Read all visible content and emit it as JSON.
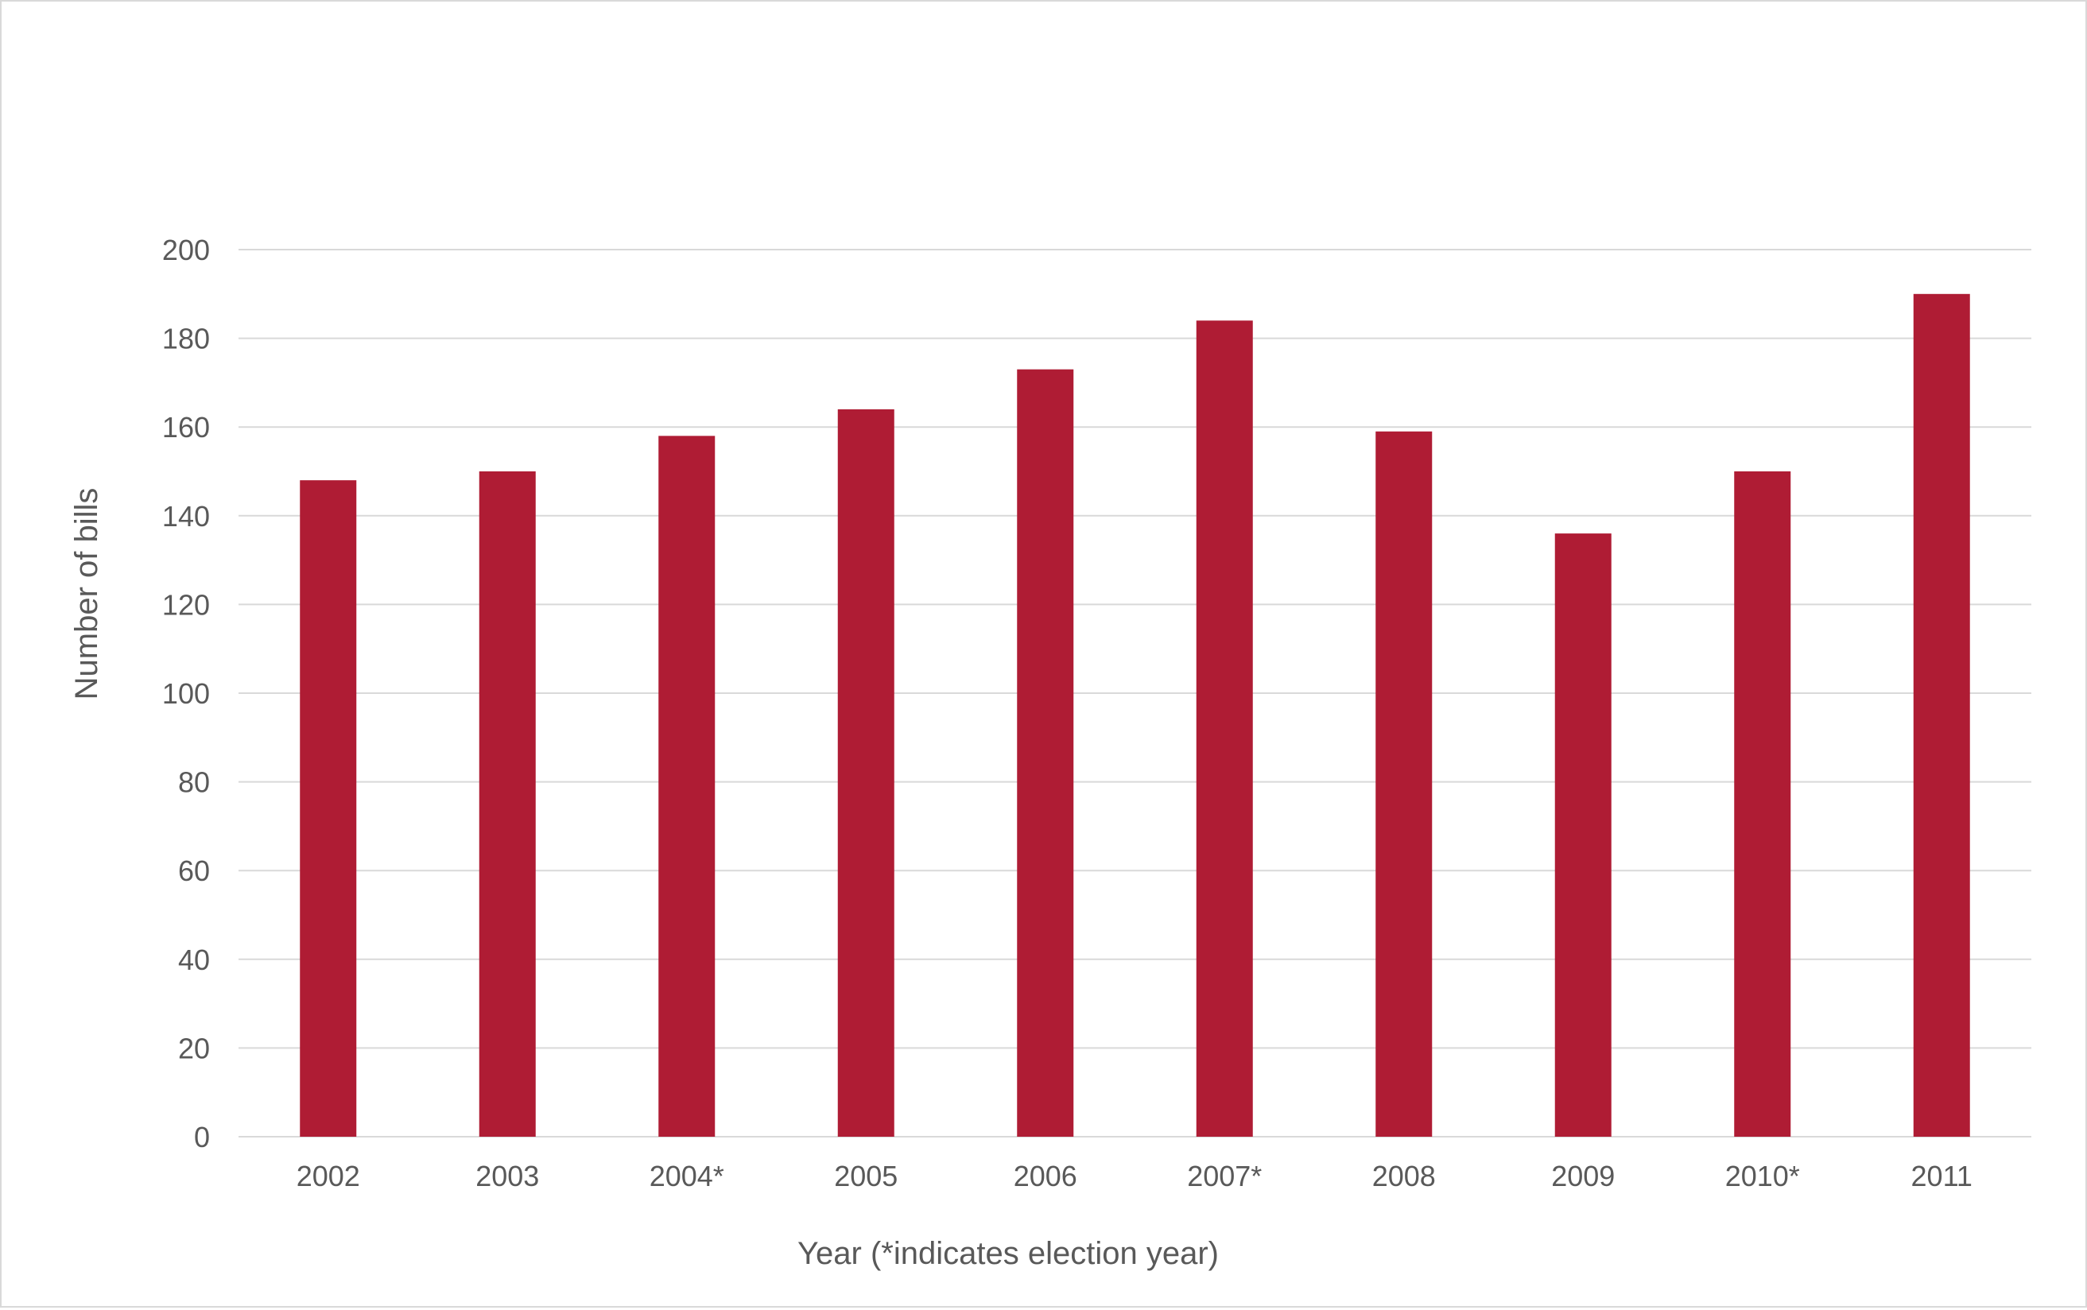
{
  "chart_data": {
    "type": "bar",
    "title": "",
    "xlabel": "Year (*indicates election year)",
    "ylabel": "Number of bills",
    "categories": [
      "2002",
      "2003",
      "2004*",
      "2005",
      "2006",
      "2007*",
      "2008",
      "2009",
      "2010*",
      "2011"
    ],
    "series": [
      {
        "values": [
          148,
          150,
          158,
          164,
          173,
          184,
          159,
          136,
          150,
          190
        ]
      }
    ],
    "ylim": [
      0,
      200
    ],
    "yticks": [
      0,
      20,
      40,
      60,
      80,
      100,
      120,
      140,
      160,
      180,
      200
    ],
    "grid": true,
    "legend": "none",
    "colors": {
      "bar": "#af1c34",
      "grid": "#d9d9d9",
      "text": "#595959"
    }
  }
}
